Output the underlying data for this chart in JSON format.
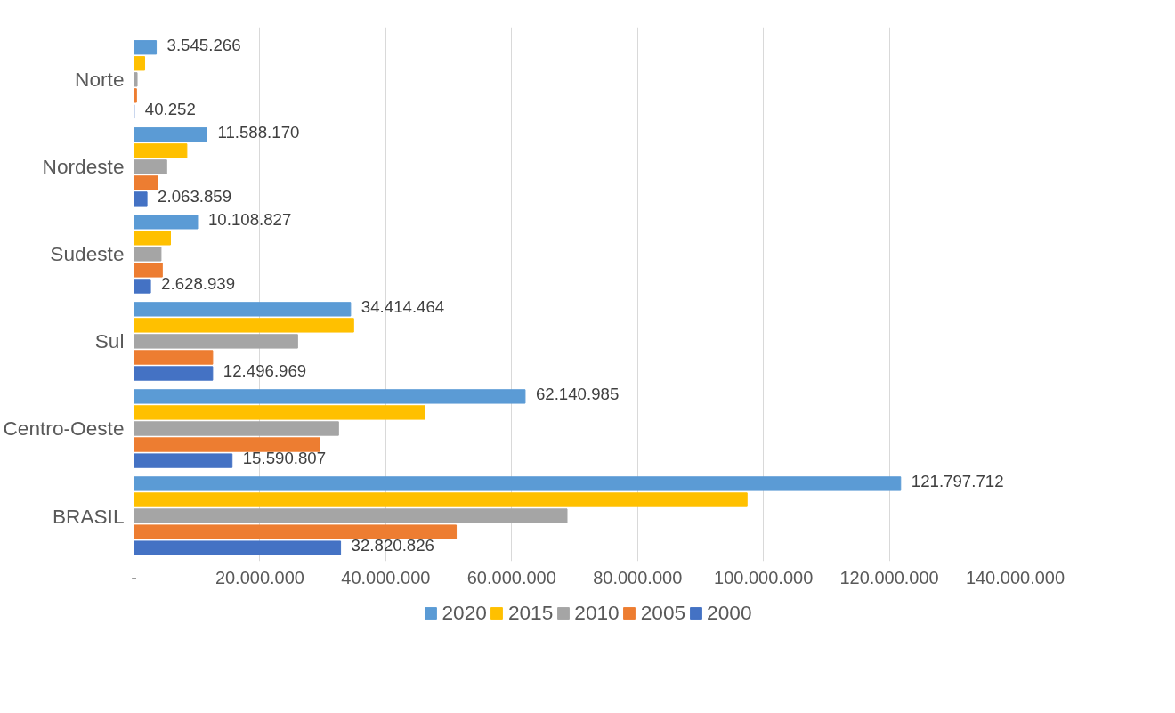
{
  "chart_data": {
    "type": "bar",
    "orientation": "horizontal",
    "categories": [
      "Norte",
      "Nordeste",
      "Sudeste",
      "Sul",
      "Centro-Oeste",
      "BRASIL"
    ],
    "series": [
      {
        "name": "2020",
        "color": "#5b9bd5",
        "values": [
          3545266,
          11588170,
          10108827,
          34414464,
          62140985,
          121797712
        ],
        "value_labels": [
          "3.545.266",
          "11.588.170",
          "10.108.827",
          "34.414.464",
          "62.140.985",
          "121.797.712"
        ]
      },
      {
        "name": "2015",
        "color": "#ffc000",
        "values": [
          1700000,
          8400000,
          5800000,
          34900000,
          46200000,
          97400000
        ]
      },
      {
        "name": "2010",
        "color": "#a5a5a5",
        "values": [
          500000,
          5200000,
          4300000,
          26000000,
          32500000,
          68800000
        ]
      },
      {
        "name": "2005",
        "color": "#ed7d31",
        "values": [
          400000,
          3800000,
          4500000,
          12500000,
          29500000,
          51200000
        ]
      },
      {
        "name": "2000",
        "color": "#4472c4",
        "values": [
          40252,
          2063859,
          2628939,
          12496969,
          15590807,
          32820826
        ],
        "value_labels": [
          "40.252",
          "2.063.859",
          "2.628.939",
          "12.496.969",
          "15.590.807",
          "32.820.826"
        ]
      }
    ],
    "xlim": [
      0,
      140000000
    ],
    "xticks": [
      {
        "value": 0,
        "label": "-"
      },
      {
        "value": 20000000,
        "label": "20.000.000"
      },
      {
        "value": 40000000,
        "label": "40.000.000"
      },
      {
        "value": 60000000,
        "label": "60.000.000"
      },
      {
        "value": 80000000,
        "label": "80.000.000"
      },
      {
        "value": 100000000,
        "label": "100.000.000"
      },
      {
        "value": 120000000,
        "label": "120.000.000"
      },
      {
        "value": 140000000,
        "label": "140.000.000"
      }
    ],
    "grid": "x",
    "legend": "bottom"
  }
}
